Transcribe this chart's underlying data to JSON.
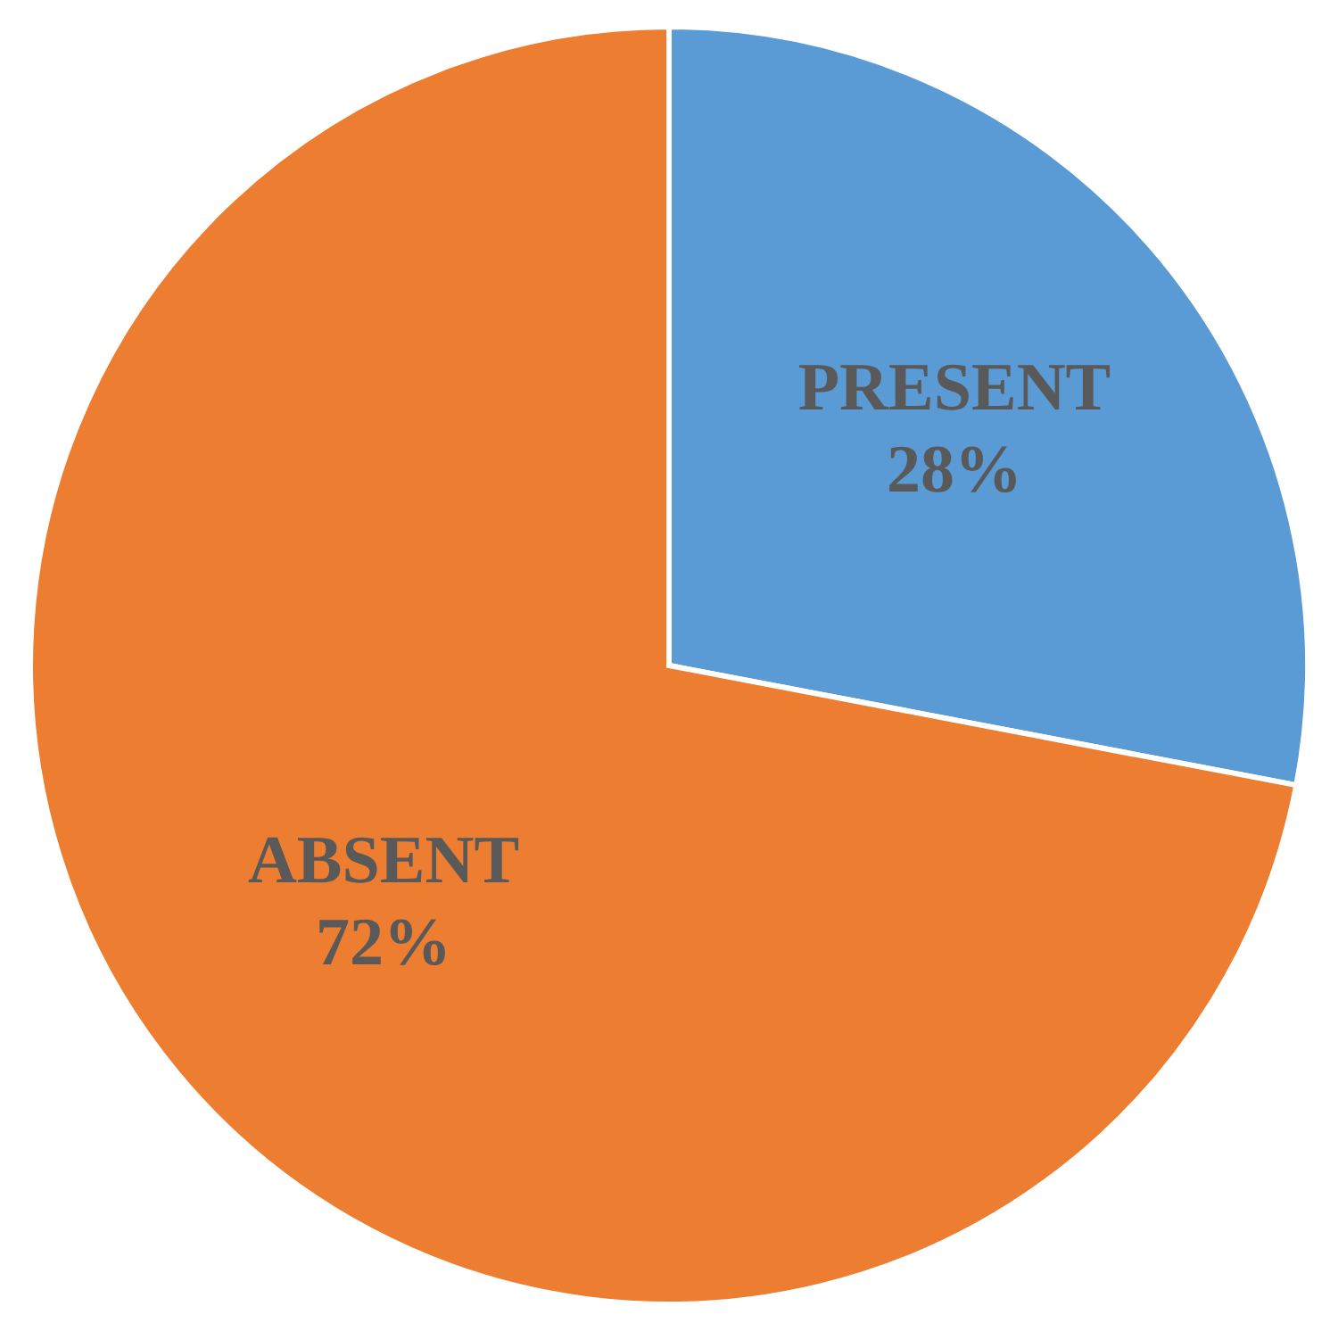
{
  "chart_data": {
    "type": "pie",
    "categories": [
      "PRESENT",
      "ABSENT"
    ],
    "values": [
      28,
      72
    ],
    "colors": [
      "#5b9bd5",
      "#ed7d31"
    ],
    "value_labels": [
      "28%",
      "72%"
    ]
  }
}
